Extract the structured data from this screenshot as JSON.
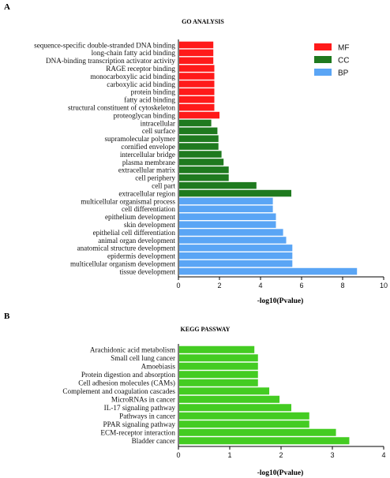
{
  "panels": {
    "a": {
      "letter": "A",
      "title": "GO ANALYSIS",
      "xlabel": "-log10(Pvalue)"
    },
    "b": {
      "letter": "B",
      "title": "KEGG PASSWAY",
      "xlabel": "-log10(Pvalue)"
    }
  },
  "legend": [
    {
      "name": "MF",
      "color": "#ff1a1a"
    },
    {
      "name": "CC",
      "color": "#1f7a1f"
    },
    {
      "name": "BP",
      "color": "#5aa5f5"
    }
  ],
  "chart_data": [
    {
      "type": "bar",
      "orientation": "horizontal",
      "title": "GO ANALYSIS",
      "xlabel": "-log10(Pvalue)",
      "xlim": [
        0,
        10
      ],
      "xticks": [
        0,
        2,
        4,
        6,
        8,
        10
      ],
      "legend_position": "top-right",
      "bar_groups": [
        "MF",
        "MF",
        "MF",
        "MF",
        "MF",
        "MF",
        "MF",
        "MF",
        "MF",
        "MF",
        "CC",
        "CC",
        "CC",
        "CC",
        "CC",
        "CC",
        "CC",
        "CC",
        "CC",
        "CC",
        "BP",
        "BP",
        "BP",
        "BP",
        "BP",
        "BP",
        "BP",
        "BP",
        "BP",
        "BP"
      ],
      "categories": [
        "sequence-specific double-stranded DNA binding",
        "long-chain fatty acid binding",
        "DNA-binding transcription activator activity",
        "RAGE receptor binding",
        "monocarboxylic acid binding",
        "carboxylic acid binding",
        "protein binding",
        "fatty acid binding",
        "structural constituent of cytoskeleton",
        "proteoglycan binding",
        "intracellular",
        "cell surface",
        "supramolecular polymer",
        "cornified envelope",
        "intercellular bridge",
        "plasma membrane",
        "extracellular matrix",
        "cell periphery",
        "cell part",
        "extracellular region",
        "multicellular organismal process",
        "cell differentiation",
        "epithelium development",
        "skin development",
        "epithelial cell differentiation",
        "animal organ development",
        "anatomical structure development",
        "epidermis development",
        "multicellular organism development",
        "tissue development"
      ],
      "values": [
        1.7,
        1.7,
        1.7,
        1.75,
        1.75,
        1.75,
        1.75,
        1.75,
        1.75,
        2.0,
        1.6,
        1.9,
        1.95,
        1.95,
        2.1,
        2.2,
        2.45,
        2.45,
        3.8,
        5.5,
        4.6,
        4.6,
        4.75,
        4.75,
        5.1,
        5.25,
        5.55,
        5.55,
        5.55,
        8.7
      ]
    },
    {
      "type": "bar",
      "orientation": "horizontal",
      "title": "KEGG PASSWAY",
      "xlabel": "-log10(Pvalue)",
      "xlim": [
        0,
        4
      ],
      "xticks": [
        0,
        1,
        2,
        3,
        4
      ],
      "color": "#44cc22",
      "categories": [
        "Arachidonic acid metabolism",
        "Small cell lung cancer",
        "Amoebiasis",
        "Protein digestion and absorption",
        "Cell adhesion molecules (CAMs)",
        "Complement and coagulation cascades",
        "MicroRNAs in cancer",
        "IL-17 signaling pathway",
        "Pathways in cancer",
        "PPAR signaling pathway",
        "ECM-receptor interaction",
        "Bladder cancer"
      ],
      "values": [
        1.48,
        1.55,
        1.55,
        1.55,
        1.55,
        1.77,
        1.97,
        2.2,
        2.55,
        2.55,
        3.07,
        3.33
      ]
    }
  ]
}
